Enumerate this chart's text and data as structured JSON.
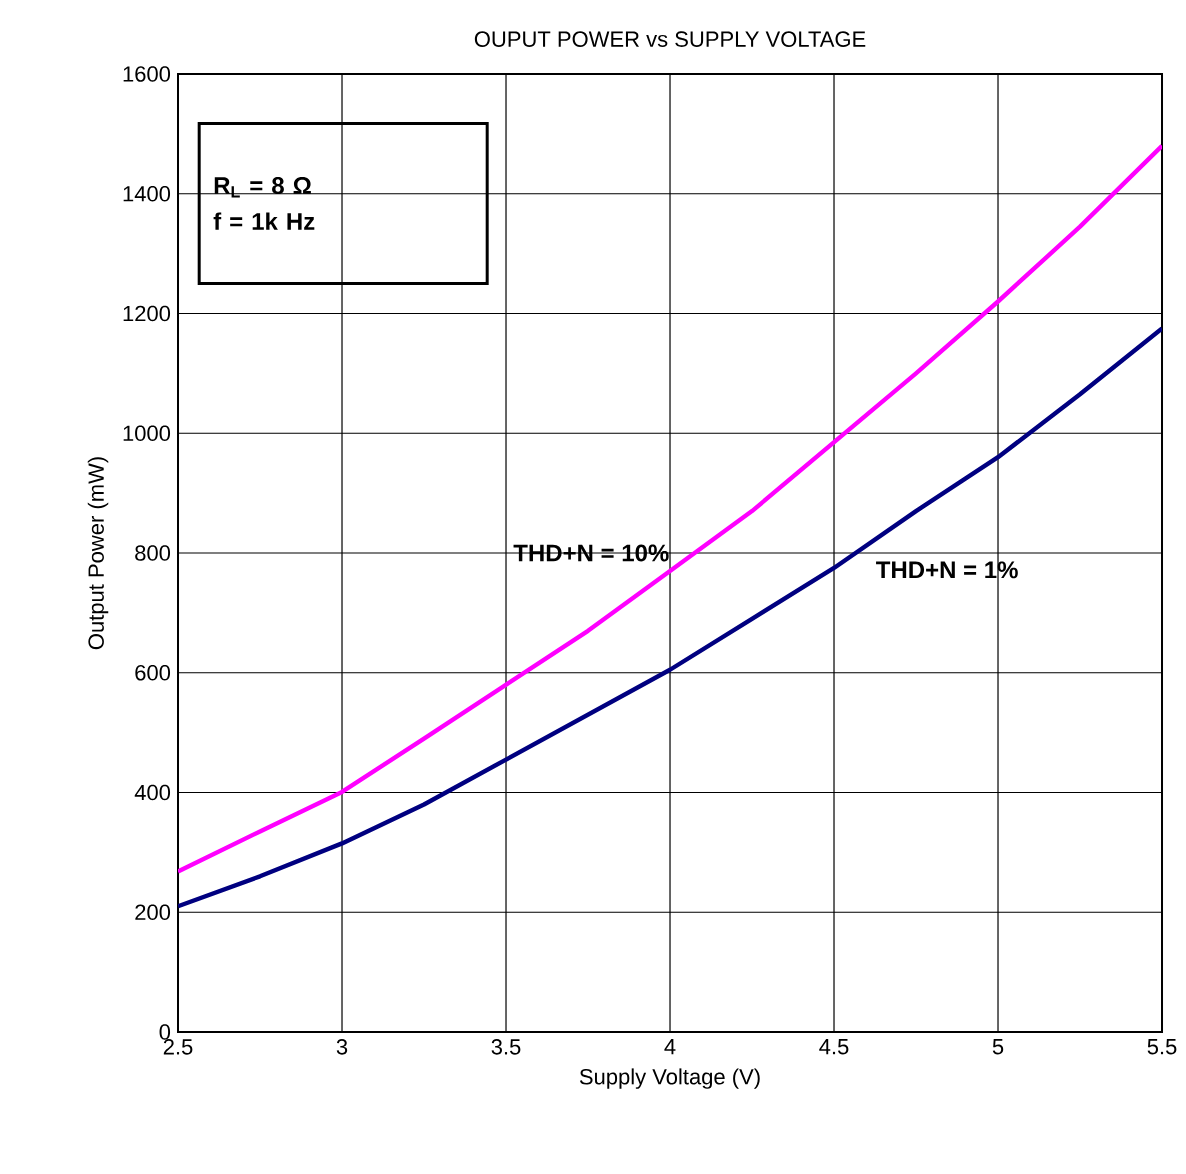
{
  "chart_data": {
    "type": "line",
    "title": "OUPUT POWER vs SUPPLY VOLTAGE",
    "xlabel": "Supply Voltage (V)",
    "ylabel": "Output Power (mW)",
    "x": [
      2.5,
      2.75,
      3.0,
      3.25,
      3.5,
      3.75,
      4.0,
      4.25,
      4.5,
      4.75,
      5.0,
      5.25,
      5.5
    ],
    "series": [
      {
        "name": "THD+N = 10%",
        "color": "#ff00ff",
        "values": [
          268,
          335,
          401,
          490,
          580,
          670,
          770,
          870,
          985,
          1100,
          1220,
          1345,
          1480
        ]
      },
      {
        "name": "THD+N = 1%",
        "color": "#000080",
        "values": [
          210,
          260,
          315,
          380,
          455,
          530,
          605,
          690,
          775,
          870,
          960,
          1065,
          1175
        ]
      }
    ],
    "xlim": [
      2.5,
      5.5
    ],
    "xticks": [
      2.5,
      3,
      3.5,
      4,
      4.5,
      5,
      5.5
    ],
    "ylim": [
      0,
      1600
    ],
    "yticks": [
      0,
      200,
      400,
      600,
      800,
      1000,
      1200,
      1400,
      1600
    ],
    "grid": true,
    "marker": "none",
    "line_style": "solid",
    "annotations": [
      "R$_{L}$ = 8 Ω",
      "f = 1k Hz"
    ]
  }
}
